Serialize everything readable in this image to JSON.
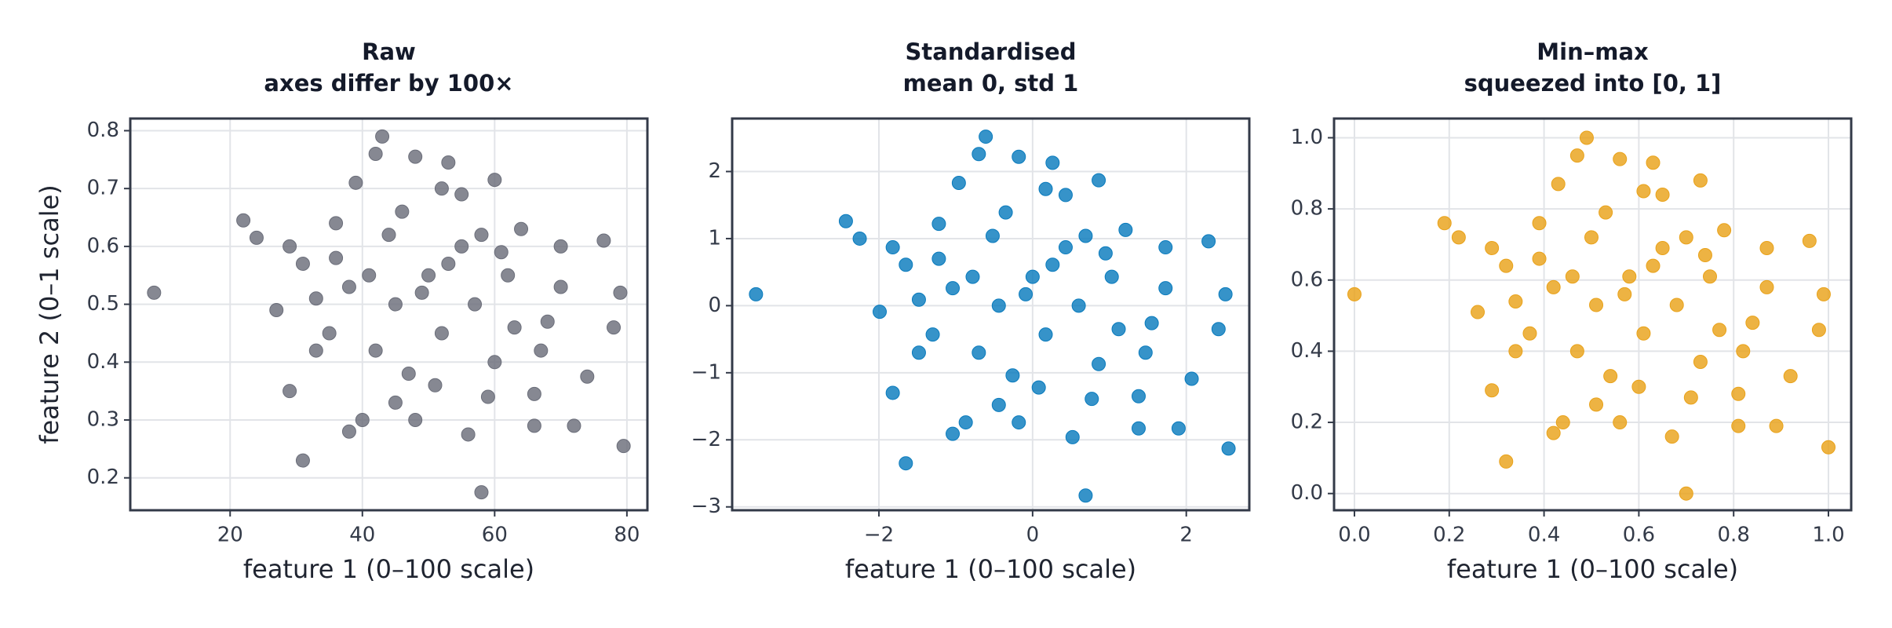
{
  "chart_data": [
    {
      "type": "scatter",
      "title": "Raw",
      "subtitle": "axes differ by 100×",
      "x_label": "feature 1 (0–100 scale)",
      "y_label": "feature 2 (0–1 scale)",
      "color": "#6b6e7a",
      "grid": true,
      "xlim": [
        4.9,
        83.1
      ],
      "ylim": [
        0.144,
        0.821
      ],
      "xticks": [
        20,
        40,
        60,
        80
      ],
      "yticks": [
        0.2,
        0.3,
        0.4,
        0.5,
        0.6,
        0.7,
        0.8
      ],
      "x": [
        8.5,
        79.5,
        58,
        43,
        22,
        24,
        31,
        29,
        38,
        42,
        48,
        53,
        60,
        39,
        76.5,
        78,
        79,
        72,
        66,
        56,
        48,
        40,
        33,
        35,
        45,
        50,
        55,
        62,
        68,
        70,
        60,
        52,
        47,
        44,
        36,
        29,
        27,
        64,
        57,
        51,
        42,
        38,
        46,
        55,
        63,
        74,
        66,
        59,
        49,
        53,
        61,
        41,
        33,
        45,
        36,
        67,
        52,
        58,
        70,
        31
      ],
      "y": [
        0.52,
        0.255,
        0.175,
        0.79,
        0.645,
        0.615,
        0.23,
        0.35,
        0.28,
        0.76,
        0.755,
        0.745,
        0.715,
        0.71,
        0.61,
        0.46,
        0.52,
        0.29,
        0.29,
        0.275,
        0.3,
        0.3,
        0.42,
        0.45,
        0.5,
        0.55,
        0.6,
        0.55,
        0.47,
        0.6,
        0.4,
        0.45,
        0.38,
        0.62,
        0.58,
        0.6,
        0.49,
        0.63,
        0.5,
        0.36,
        0.42,
        0.53,
        0.66,
        0.69,
        0.46,
        0.375,
        0.345,
        0.34,
        0.52,
        0.57,
        0.59,
        0.55,
        0.51,
        0.33,
        0.64,
        0.42,
        0.7,
        0.62,
        0.53,
        0.57
      ]
    },
    {
      "type": "scatter",
      "title": "Standardised",
      "subtitle": "mean 0, std 1",
      "x_label": "feature 1 (0–100 scale)",
      "color": "#0a7bbd",
      "grid": true,
      "xlim": [
        -3.91,
        2.82
      ],
      "ylim": [
        -3.05,
        2.79
      ],
      "xticks": [
        {
          "value": -2,
          "label": "−2"
        },
        0,
        2
      ],
      "yticks": [
        {
          "value": -3,
          "label": "−3"
        },
        {
          "value": -2,
          "label": "−2"
        },
        {
          "value": -1,
          "label": "−1"
        },
        0,
        1,
        2
      ],
      "x": [
        -3.6,
        2.55,
        0.69,
        -0.61,
        -2.43,
        -2.25,
        -1.65,
        -1.82,
        -1.04,
        -0.7,
        -0.18,
        0.26,
        0.86,
        -0.96,
        2.29,
        2.42,
        2.51,
        1.9,
        1.38,
        0.52,
        -0.18,
        -0.87,
        -1.48,
        -1.3,
        -0.44,
        0,
        0.43,
        1.03,
        1.55,
        1.73,
        0.86,
        0.17,
        -0.26,
        -0.52,
        -1.22,
        -1.82,
        -1.99,
        1.21,
        0.6,
        0.08,
        -0.7,
        -1.04,
        -0.35,
        0.43,
        1.12,
        2.07,
        1.38,
        0.77,
        -0.09,
        0.26,
        0.95,
        -0.78,
        -1.48,
        -0.44,
        -1.22,
        1.47,
        0.17,
        0.69,
        1.73,
        -1.65
      ],
      "y": [
        0.17,
        -2.13,
        -2.83,
        2.52,
        1.26,
        1,
        -2.35,
        -1.3,
        -1.91,
        2.26,
        2.22,
        2.13,
        1.87,
        1.83,
        0.96,
        -0.35,
        0.17,
        -1.83,
        -1.83,
        -1.96,
        -1.74,
        -1.74,
        -0.7,
        -0.43,
        0,
        0.43,
        0.87,
        0.43,
        -0.26,
        0.87,
        -0.87,
        -0.43,
        -1.04,
        1.04,
        0.7,
        0.87,
        -0.09,
        1.13,
        0,
        -1.22,
        -0.7,
        0.26,
        1.39,
        1.65,
        -0.35,
        -1.09,
        -1.35,
        -1.39,
        0.17,
        0.61,
        0.78,
        0.43,
        0.09,
        -1.48,
        1.22,
        -0.7,
        1.74,
        1.04,
        0.26,
        0.61
      ]
    },
    {
      "type": "scatter",
      "title": "Min–max",
      "subtitle": "squeezed into [0, 1]",
      "x_label": "feature 1 (0–100 scale)",
      "color": "#e9a21a",
      "grid": true,
      "xlim": [
        -0.043,
        1.048
      ],
      "ylim": [
        -0.047,
        1.054
      ],
      "xticks": [
        {
          "value": 0,
          "label": "0.0"
        },
        {
          "value": 0.2,
          "label": "0.2"
        },
        {
          "value": 0.4,
          "label": "0.4"
        },
        {
          "value": 0.6,
          "label": "0.6"
        },
        {
          "value": 0.8,
          "label": "0.8"
        },
        {
          "value": 1,
          "label": "1.0"
        }
      ],
      "yticks": [
        {
          "value": 0,
          "label": "0.0"
        },
        {
          "value": 0.2,
          "label": "0.2"
        },
        {
          "value": 0.4,
          "label": "0.4"
        },
        {
          "value": 0.6,
          "label": "0.6"
        },
        {
          "value": 0.8,
          "label": "0.8"
        },
        {
          "value": 1,
          "label": "1.0"
        }
      ],
      "x": [
        0,
        1,
        0.7,
        0.49,
        0.19,
        0.22,
        0.32,
        0.29,
        0.42,
        0.47,
        0.56,
        0.63,
        0.73,
        0.43,
        0.96,
        0.98,
        0.99,
        0.89,
        0.81,
        0.67,
        0.56,
        0.44,
        0.34,
        0.37,
        0.51,
        0.58,
        0.65,
        0.75,
        0.84,
        0.87,
        0.73,
        0.61,
        0.54,
        0.5,
        0.39,
        0.29,
        0.26,
        0.78,
        0.68,
        0.6,
        0.47,
        0.42,
        0.53,
        0.65,
        0.77,
        0.92,
        0.81,
        0.71,
        0.57,
        0.63,
        0.74,
        0.46,
        0.34,
        0.51,
        0.39,
        0.82,
        0.61,
        0.7,
        0.87,
        0.32
      ],
      "y": [
        0.56,
        0.13,
        0,
        1,
        0.76,
        0.72,
        0.09,
        0.29,
        0.17,
        0.95,
        0.94,
        0.93,
        0.88,
        0.87,
        0.71,
        0.46,
        0.56,
        0.19,
        0.19,
        0.16,
        0.2,
        0.2,
        0.4,
        0.45,
        0.53,
        0.61,
        0.69,
        0.61,
        0.48,
        0.69,
        0.37,
        0.45,
        0.33,
        0.72,
        0.66,
        0.69,
        0.51,
        0.74,
        0.53,
        0.3,
        0.4,
        0.58,
        0.79,
        0.84,
        0.46,
        0.33,
        0.28,
        0.27,
        0.56,
        0.64,
        0.67,
        0.61,
        0.54,
        0.25,
        0.76,
        0.4,
        0.85,
        0.72,
        0.58,
        0.64
      ]
    }
  ]
}
